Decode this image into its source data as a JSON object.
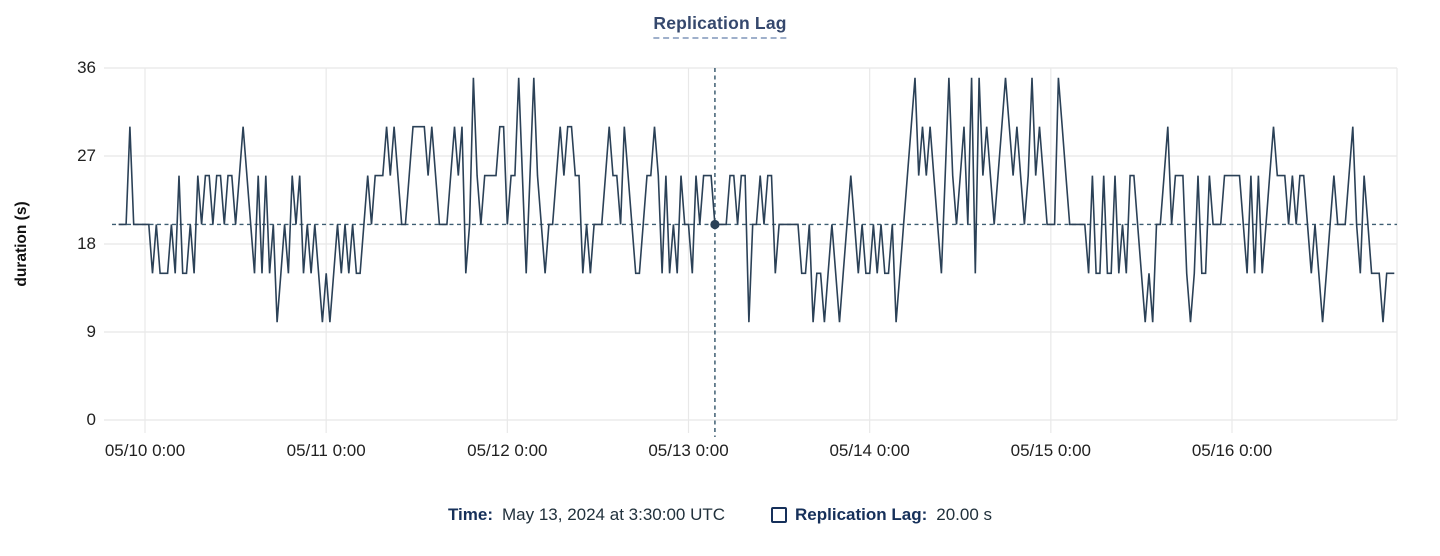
{
  "title": "Replication Lag",
  "colors": {
    "background": "#FFFFFF",
    "line": "#2B4157",
    "grid": "#E8E8E8",
    "axis_text": "#212121",
    "title_text": "#35486D",
    "title_underline": "#9FB0CB",
    "crosshair": "#3E5E72",
    "dot": "#2B4157",
    "legend_label": "#16305A",
    "legend_value": "#21313C"
  },
  "legend": {
    "time_label": "Time:",
    "time_value": "May 13, 2024 at 3:30:00 UTC",
    "series_marker_icon": "square-outline",
    "series_label": "Replication Lag:",
    "series_value": "20.00 s"
  },
  "chart_data": {
    "type": "line",
    "title": "Replication Lag",
    "xlabel": "",
    "ylabel": "duration (s)",
    "ylim": [
      0,
      36
    ],
    "y_ticks": [
      0,
      9,
      18,
      27,
      36
    ],
    "x_tick_labels": [
      "05/10 0:00",
      "05/11 0:00",
      "05/12 0:00",
      "05/13 0:00",
      "05/14 0:00",
      "05/15 0:00",
      "05/16 0:00"
    ],
    "grid": true,
    "legend_position": "bottom",
    "start_time": "05/09 20:30",
    "step_minutes": 30,
    "unit": "s",
    "hover_index": 158,
    "hover": {
      "time_label": "May 13, 2024 at 3:30:00 UTC",
      "value": 20,
      "value_label": "20.00 s"
    },
    "values": [
      20,
      20,
      20,
      30,
      20,
      20,
      20,
      20,
      20,
      15,
      20,
      15,
      15,
      15,
      20,
      15,
      25,
      15,
      15,
      20,
      15,
      25,
      20,
      25,
      25,
      20,
      25,
      25,
      20,
      25,
      25,
      20,
      25,
      30,
      25,
      20,
      15,
      25,
      15,
      25,
      15,
      20,
      10,
      15,
      20,
      15,
      25,
      20,
      25,
      15,
      20,
      15,
      20,
      15,
      10,
      15,
      10,
      15,
      20,
      15,
      20,
      15,
      20,
      15,
      15,
      20,
      25,
      20,
      25,
      25,
      25,
      30,
      25,
      30,
      25,
      20,
      20,
      25,
      30,
      30,
      30,
      30,
      25,
      30,
      25,
      20,
      20,
      20,
      25,
      30,
      25,
      30,
      15,
      20,
      35,
      25,
      20,
      25,
      25,
      25,
      25,
      30,
      30,
      20,
      25,
      25,
      35,
      25,
      15,
      25,
      35,
      25,
      20,
      15,
      20,
      20,
      25,
      30,
      25,
      30,
      30,
      25,
      25,
      15,
      20,
      15,
      20,
      20,
      20,
      25,
      30,
      25,
      25,
      20,
      30,
      25,
      20,
      15,
      15,
      20,
      25,
      25,
      30,
      25,
      15,
      25,
      15,
      20,
      15,
      25,
      20,
      20,
      15,
      25,
      20,
      25,
      25,
      25,
      20,
      20,
      20,
      20,
      25,
      25,
      20,
      25,
      25,
      10,
      20,
      20,
      25,
      20,
      25,
      25,
      15,
      20,
      20,
      20,
      20,
      20,
      20,
      15,
      15,
      20,
      10,
      15,
      15,
      10,
      15,
      20,
      15,
      10,
      15,
      20,
      25,
      20,
      15,
      20,
      15,
      15,
      20,
      15,
      20,
      15,
      15,
      20,
      10,
      15,
      20,
      25,
      30,
      35,
      25,
      30,
      25,
      30,
      25,
      20,
      15,
      25,
      35,
      25,
      20,
      25,
      30,
      20,
      35,
      15,
      35,
      25,
      30,
      25,
      20,
      25,
      30,
      35,
      30,
      25,
      30,
      25,
      20,
      25,
      35,
      25,
      30,
      25,
      20,
      20,
      20,
      35,
      30,
      25,
      20,
      20,
      20,
      20,
      20,
      15,
      25,
      15,
      15,
      25,
      15,
      15,
      25,
      15,
      20,
      15,
      25,
      25,
      20,
      15,
      10,
      15,
      10,
      20,
      20,
      25,
      30,
      20,
      25,
      25,
      25,
      15,
      10,
      15,
      25,
      15,
      15,
      25,
      20,
      20,
      20,
      25,
      25,
      25,
      25,
      25,
      20,
      15,
      25,
      15,
      25,
      15,
      20,
      25,
      30,
      25,
      25,
      25,
      20,
      25,
      20,
      25,
      25,
      20,
      15,
      20,
      15,
      10,
      15,
      20,
      25,
      20,
      20,
      20,
      25,
      30,
      20,
      15,
      25,
      20,
      15,
      15,
      15,
      10,
      15,
      15,
      15
    ]
  }
}
